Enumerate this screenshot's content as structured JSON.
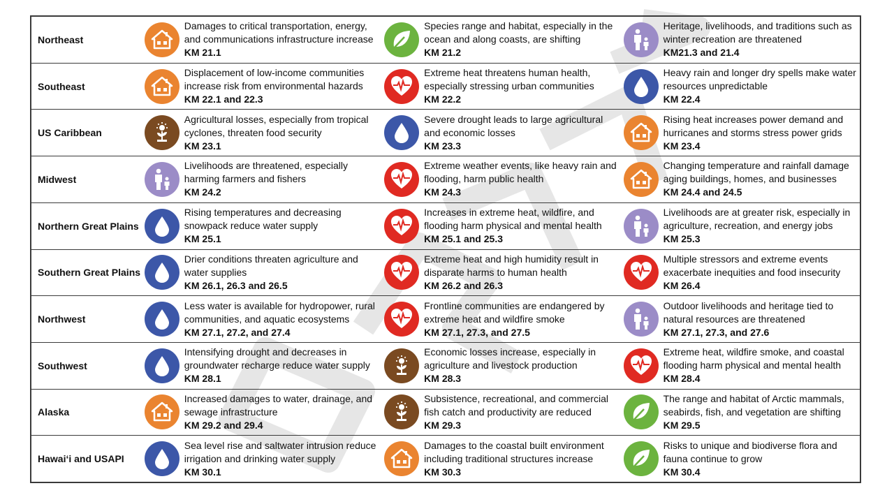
{
  "colors": {
    "house": "#ea8430",
    "leaf": "#6cb33f",
    "person": "#9b8cc7",
    "heart": "#e02a22",
    "drop": "#3c57a8",
    "sprout": "#7a4a21"
  },
  "rows": [
    {
      "region": "Northeast",
      "cells": [
        {
          "icon": "house-icon",
          "text": "Damages to critical transportation, energy, and communications infrastructure increase",
          "km": "KM 21.1"
        },
        {
          "icon": "leaf-icon",
          "text": "Species range and habitat, especially in the ocean and along coasts, are shifting",
          "km": "KM 21.2"
        },
        {
          "icon": "person-icon",
          "text": "Heritage, livelihoods, and traditions such as winter recreation are threatened",
          "km": "KM21.3 and 21.4"
        }
      ]
    },
    {
      "region": "Southeast",
      "cells": [
        {
          "icon": "house-icon",
          "text": "Displacement of low-income communities increase risk from environmental hazards",
          "km": "KM 22.1 and 22.3"
        },
        {
          "icon": "heart-icon",
          "text": "Extreme heat threatens human health, especially stressing urban communities",
          "km": "KM 22.2"
        },
        {
          "icon": "drop-icon",
          "text": "Heavy rain and longer dry spells make water resources unpredictable",
          "km": "KM 22.4"
        }
      ]
    },
    {
      "region": "US Caribbean",
      "cells": [
        {
          "icon": "sprout-icon",
          "text": "Agricultural losses, especially from tropical cyclones, threaten food security",
          "km": "KM 23.1"
        },
        {
          "icon": "drop-icon",
          "text": "Severe drought leads to large agricultural and economic losses",
          "km": "KM 23.3"
        },
        {
          "icon": "house-icon",
          "text": "Rising heat increases power demand and hurricanes and storms stress power grids",
          "km": "KM 23.4"
        }
      ]
    },
    {
      "region": "Midwest",
      "cells": [
        {
          "icon": "person-icon",
          "text": "Livelihoods are threatened, especially harming farmers and fishers",
          "km": "KM 24.2"
        },
        {
          "icon": "heart-icon",
          "text": "Extreme weather events, like heavy rain and flooding, harm public health",
          "km": "KM 24.3"
        },
        {
          "icon": "house-icon",
          "text": "Changing temperature and rainfall damage aging buildings, homes, and businesses",
          "km": "KM 24.4 and 24.5"
        }
      ]
    },
    {
      "region": "Northern Great Plains",
      "cells": [
        {
          "icon": "drop-icon",
          "text": "Rising temperatures and decreasing snowpack reduce water supply",
          "km": "KM 25.1"
        },
        {
          "icon": "heart-icon",
          "text": "Increases in extreme heat, wildfire, and flooding harm physical and mental health",
          "km": "KM 25.1 and 25.3"
        },
        {
          "icon": "person-icon",
          "text": "Livelihoods are at greater risk, especially in agriculture, recreation, and energy jobs",
          "km": "KM 25.3"
        }
      ]
    },
    {
      "region": "Southern Great Plains",
      "cells": [
        {
          "icon": "drop-icon",
          "text": "Drier conditions threaten agriculture and water supplies",
          "km": "KM 26.1, 26.3 and 26.5"
        },
        {
          "icon": "heart-icon",
          "text": "Extreme heat and high humidity result in disparate harms to human health",
          "km": "KM 26.2 and 26.3"
        },
        {
          "icon": "heart-icon",
          "text": "Multiple stressors and extreme events exacerbate inequities and food insecurity",
          "km": "KM 26.4"
        }
      ]
    },
    {
      "region": "Northwest",
      "cells": [
        {
          "icon": "drop-icon",
          "text": "Less water is available for hydropower, rural communities, and aquatic ecosystems",
          "km": "KM 27.1, 27.2, and 27.4"
        },
        {
          "icon": "heart-icon",
          "text": "Frontline communities are endangered by extreme heat and wildfire smoke",
          "km": "KM 27.1, 27.3, and 27.5"
        },
        {
          "icon": "person-icon",
          "text": "Outdoor livelihoods and heritage tied to natural resources are threatened",
          "km": "KM 27.1, 27.3, and 27.6"
        }
      ]
    },
    {
      "region": "Southwest",
      "cells": [
        {
          "icon": "drop-icon",
          "text": "Intensifying drought and decreases in groundwater recharge reduce water supply",
          "km": "KM 28.1"
        },
        {
          "icon": "sprout-icon",
          "text": "Economic losses increase, especially in agriculture and livestock production",
          "km": "KM 28.3"
        },
        {
          "icon": "heart-icon",
          "text": "Extreme heat, wildfire smoke, and coastal flooding harm physical and mental health",
          "km": "KM 28.4"
        }
      ]
    },
    {
      "region": "Alaska",
      "cells": [
        {
          "icon": "house-icon",
          "text": "Increased damages to water, drainage, and sewage infrastructure",
          "km": "KM 29.2 and 29.4"
        },
        {
          "icon": "sprout-icon",
          "text": "Subsistence, recreational, and commercial fish catch and productivity are reduced",
          "km": "KM 29.3"
        },
        {
          "icon": "leaf-icon",
          "text": "The range and habitat of Arctic mammals, seabirds, fish, and vegetation are shifting",
          "km": "KM 29.5"
        }
      ]
    },
    {
      "region": "Hawaiʻi and USAPI",
      "cells": [
        {
          "icon": "drop-icon",
          "text": "Sea level rise and saltwater intrusion reduce irrigation and drinking water supply",
          "km": "KM 30.1"
        },
        {
          "icon": "house-icon",
          "text": "Damages to the coastal built environment including traditional structures increase",
          "km": "KM 30.3"
        },
        {
          "icon": "leaf-icon",
          "text": "Risks to unique and biodiverse flora and fauna continue to grow",
          "km": "KM 30.4"
        }
      ]
    }
  ]
}
